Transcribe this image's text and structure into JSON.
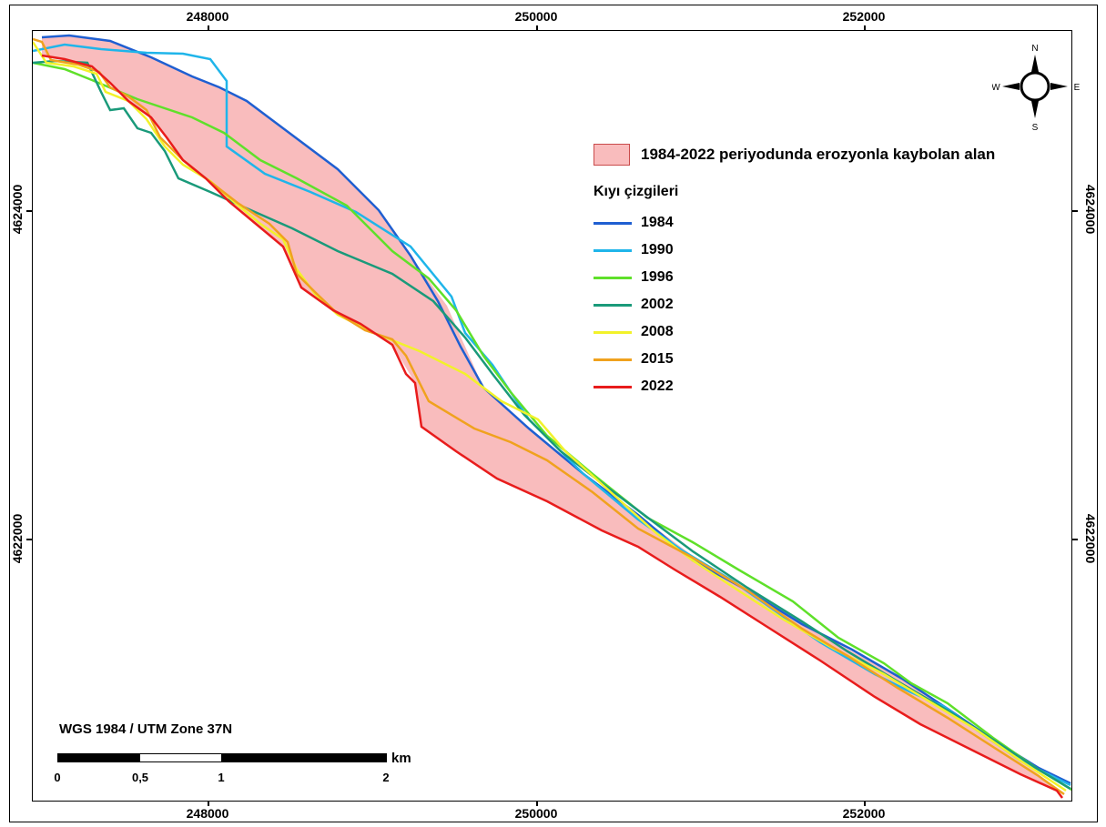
{
  "axes": {
    "x_ticks": [
      "248000",
      "250000",
      "252000"
    ],
    "y_ticks": [
      "4624000",
      "4622000"
    ]
  },
  "legend": {
    "area_label": "1984-2022 periyodunda erozyonla kaybolan alan",
    "area_color": "#f9bcbd",
    "lines_title": "Kıyı çizgileri",
    "items": [
      {
        "label": "1984",
        "color": "#1f5fd1"
      },
      {
        "label": "1990",
        "color": "#1fb5ea"
      },
      {
        "label": "1996",
        "color": "#5fe02a"
      },
      {
        "label": "2002",
        "color": "#1a9a7a"
      },
      {
        "label": "2008",
        "color": "#f2f22a"
      },
      {
        "label": "2015",
        "color": "#f0a21e"
      },
      {
        "label": "2022",
        "color": "#e81c1c"
      }
    ]
  },
  "projection": "WGS 1984 / UTM Zone 37N",
  "scalebar": {
    "labels": [
      "0",
      "0,5",
      "1",
      "2"
    ],
    "unit": "km"
  },
  "compass": {
    "n": "N",
    "s": "S",
    "e": "E",
    "w": "W"
  }
}
